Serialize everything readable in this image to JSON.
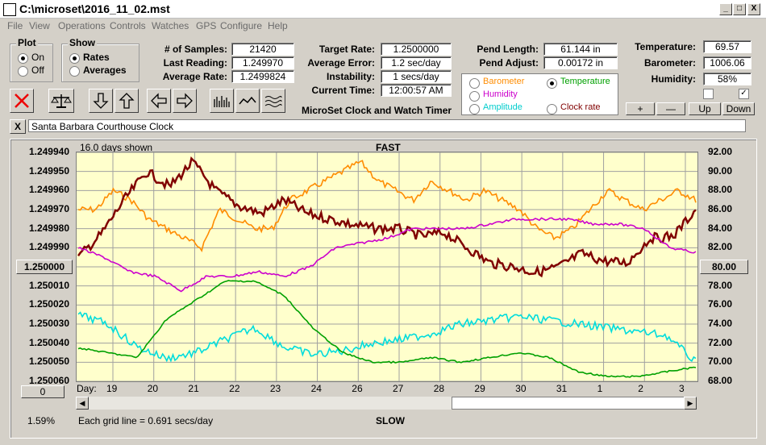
{
  "window": {
    "title": "C:\\microset\\2016_11_02.mst",
    "min": "_",
    "max": "□",
    "close": "X"
  },
  "menu": [
    "File",
    "View",
    "Operations",
    "Controls",
    "Watches",
    "GPS",
    "Configure",
    "Help"
  ],
  "plot_group": {
    "title": "Plot",
    "on": "On",
    "off": "Off",
    "selected": "On"
  },
  "show_group": {
    "title": "Show",
    "rates": "Rates",
    "averages": "Averages",
    "selected": "Rates"
  },
  "stats": {
    "samples_label": "# of Samples:",
    "samples": "21420",
    "last_label": "Last Reading:",
    "last": "1.249970",
    "avg_label": "Average Rate:",
    "avg": "1.2499824",
    "target_label": "Target Rate:",
    "target": "1.2500000",
    "avgerr_label": "Average Error:",
    "avgerr": "1.2 sec/day",
    "instab_label": "Instability:",
    "instab": "1 secs/day",
    "time_label": "Current Time:",
    "time": "12:00:57 AM",
    "pendlen_label": "Pend Length:",
    "pendlen": "61.144 in",
    "pendadj_label": "Pend Adjust:",
    "pendadj": "0.00172 in",
    "temp_label": "Temperature:",
    "temp": "69.57",
    "baro_label": "Barometer:",
    "baro": "1006.06",
    "hum_label": "Humidity:",
    "hum": "58%"
  },
  "app_name": "MicroSet Clock and Watch Timer",
  "sensor_options": [
    {
      "label": "Barometer",
      "color": "#ff8c00",
      "selected": false
    },
    {
      "label": "Temperature",
      "color": "#00a000",
      "selected": true
    },
    {
      "label": "Humidity",
      "color": "#cc00cc",
      "selected": false
    },
    {
      "label": "Clock rate",
      "color": "#800000",
      "selected": false
    },
    {
      "label": "Amplitude",
      "color": "#00cccc",
      "selected": false
    }
  ],
  "right_buttons": {
    "plus": "+",
    "minus": "—",
    "up": "Up",
    "down": "Down"
  },
  "clock_name": "Santa Barbara Courthouse Clock",
  "clear_btn": "X",
  "chart_header": {
    "days_shown": "16.0 days shown",
    "fast": "FAST",
    "slow": "SLOW",
    "grid_note": "Each grid line = 0.691 secs/day",
    "percent": "1.59%",
    "day_label": "Day:",
    "left_zero": "0"
  },
  "chart_data": {
    "type": "line",
    "y_left_ticks": [
      "1.249940",
      "1.249950",
      "1.249960",
      "1.249970",
      "1.249980",
      "1.249990",
      "1.250000",
      "1.250010",
      "1.250020",
      "1.250030",
      "1.250040",
      "1.250050",
      "1.250060"
    ],
    "y_left_center": "1.250000",
    "y_right_ticks": [
      "92.00",
      "90.00",
      "88.00",
      "86.00",
      "84.00",
      "82.00",
      "80.00",
      "78.00",
      "76.00",
      "74.00",
      "72.00",
      "70.00",
      "68.00"
    ],
    "y_right_center": "80.00",
    "x_ticks": [
      "19",
      "20",
      "21",
      "22",
      "23",
      "24",
      "26",
      "27",
      "28",
      "29",
      "30",
      "31",
      "1",
      "2",
      "3"
    ],
    "grid": true,
    "series": [
      {
        "color": "#ff8c00",
        "values": [
          86,
          86,
          88,
          87,
          85,
          84,
          83,
          82,
          86,
          85,
          84,
          84,
          87,
          88,
          89,
          90,
          91,
          89,
          88,
          87,
          89,
          88,
          87,
          88,
          87,
          86,
          84,
          83,
          84,
          86,
          88,
          87,
          86,
          87,
          88,
          87
        ]
      },
      {
        "color": "#800000",
        "values": [
          1.249995,
          1.249983,
          1.249965,
          1.24995,
          1.249958,
          1.249945,
          1.24996,
          1.249968,
          1.249972,
          1.249965,
          1.249972,
          1.249975,
          1.249978,
          1.24998,
          1.24998,
          1.249984,
          1.249982,
          1.24999,
          1.249998,
          1.25,
          1.250003,
          1.25,
          1.249993,
          1.249997,
          1.249998,
          1.249985,
          1.249984,
          1.24997
        ]
      },
      {
        "color": "#cc00cc",
        "values": [
          82.0,
          81.0,
          79.5,
          79.0,
          77.5,
          79.0,
          79.0,
          79.5,
          79.0,
          80.0,
          82.0,
          82.5,
          83.0,
          84.0,
          84.0,
          84.0,
          84.5,
          85.0,
          85.0,
          85.0,
          84.5,
          84.5,
          84.0,
          82.0,
          81.5
        ]
      },
      {
        "color": "#00dcdc",
        "values": [
          1.250025,
          1.25003,
          1.250042,
          1.250048,
          1.250045,
          1.250038,
          1.250032,
          1.250042,
          1.250046,
          1.250044,
          1.25004,
          1.250038,
          1.250035,
          1.25003,
          1.250028,
          1.250026,
          1.250028,
          1.25003,
          1.250032,
          1.250034,
          1.250036,
          1.25005
        ]
      },
      {
        "color": "#00a000",
        "values": [
          71.5,
          71.0,
          70.5,
          74.5,
          76.5,
          78.5,
          78.5,
          77.0,
          73.5,
          71.0,
          70.0,
          70.0,
          70.5,
          70.0,
          70.5,
          71.0,
          70.5,
          69.0,
          68.5,
          68.5,
          69.0,
          69.5
        ]
      }
    ]
  }
}
